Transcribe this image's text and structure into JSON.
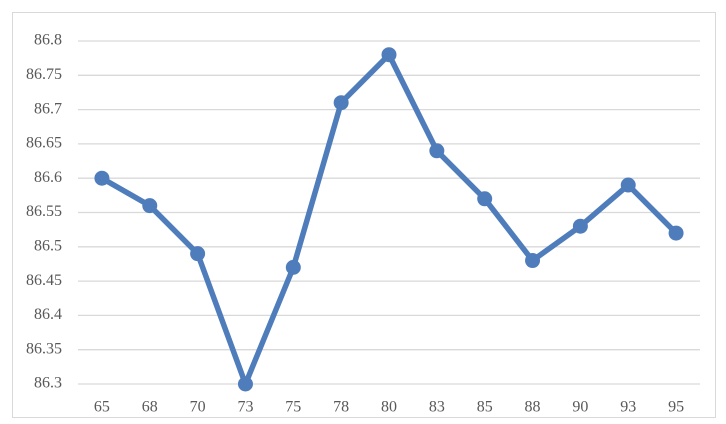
{
  "chart_data": {
    "type": "line",
    "categories": [
      "65",
      "68",
      "70",
      "73",
      "75",
      "78",
      "80",
      "83",
      "85",
      "88",
      "90",
      "93",
      "95"
    ],
    "series": [
      {
        "color": "#4f7dbb",
        "values": [
          86.6,
          86.56,
          86.49,
          86.3,
          86.47,
          86.71,
          86.78,
          86.64,
          86.57,
          86.48,
          86.53,
          86.59,
          86.52
        ]
      }
    ],
    "ylim": [
      86.3,
      86.8
    ],
    "yticks": [
      86.3,
      86.35,
      86.4,
      86.45,
      86.5,
      86.55,
      86.6,
      86.65,
      86.7,
      86.75,
      86.8
    ],
    "grid": true
  }
}
